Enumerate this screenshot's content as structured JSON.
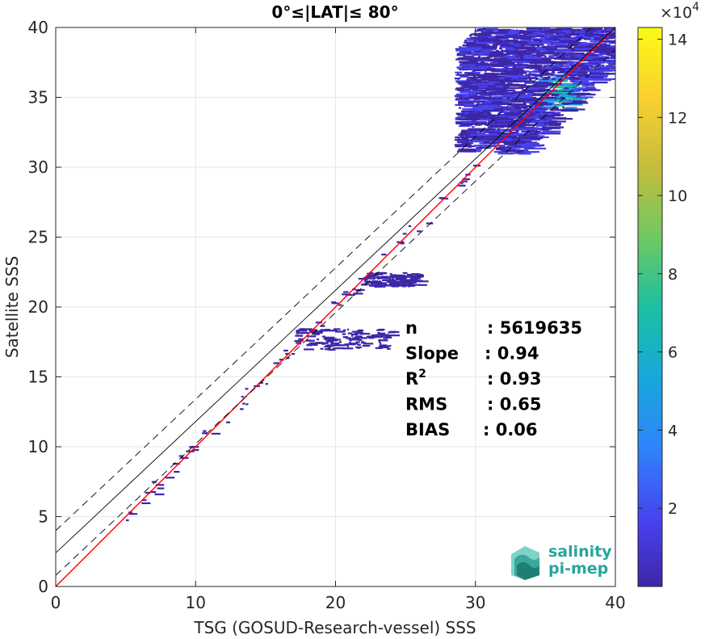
{
  "chart_data": {
    "type": "heatmap",
    "title": "0°≤|LAT|≤ 80°",
    "xlabel": "TSG (GOSUD-Research-vessel) SSS",
    "ylabel": "Satellite SSS",
    "xlim": [
      0,
      40
    ],
    "ylim": [
      0,
      40
    ],
    "xticks": [
      "0",
      "10",
      "20",
      "30",
      "40"
    ],
    "yticks": [
      "0",
      "5",
      "10",
      "15",
      "20",
      "25",
      "30",
      "35",
      "40"
    ],
    "grid": true,
    "lines": [
      {
        "name": "",
        "color": "#ff0000",
        "style": "solid",
        "x": [
          0,
          40
        ],
        "y": [
          0,
          40
        ]
      },
      {
        "name": "",
        "color": "#000000",
        "style": "solid",
        "x": [
          0,
          40
        ],
        "y": [
          2.4,
          40
        ]
      },
      {
        "name": "",
        "color": "#000000",
        "style": "dashed",
        "x": [
          0,
          40
        ],
        "y": [
          4.0,
          41.6
        ]
      },
      {
        "name": "",
        "color": "#000000",
        "style": "dashed",
        "x": [
          0,
          40
        ],
        "y": [
          0.8,
          38.4
        ]
      }
    ],
    "density_regions": [
      {
        "x": [
          28.5,
          40
        ],
        "y": [
          31,
          40
        ],
        "level": "high"
      },
      {
        "x": [
          17,
          24
        ],
        "y": [
          17,
          18.5
        ],
        "level": "low"
      },
      {
        "x": [
          22,
          26
        ],
        "y": [
          21.5,
          22.5
        ],
        "level": "low"
      }
    ],
    "colorbar": {
      "multiplier": "×10",
      "multiplier_exp": "4",
      "ticks": [
        "2",
        "4",
        "6",
        "8",
        "10",
        "12",
        "14"
      ],
      "range": [
        0,
        14.3
      ],
      "colors": [
        "#3e26a8",
        "#4743f0",
        "#2e85fb",
        "#17a9d8",
        "#1dbfa2",
        "#6cc964",
        "#c5bc3c",
        "#fbd12f",
        "#f9fb15"
      ]
    },
    "stats": [
      {
        "label": "n",
        "sep": ":",
        "value": "5619635"
      },
      {
        "label": "Slope",
        "sep": ":",
        "value": "0.94"
      },
      {
        "label": "R",
        "sup": "2",
        "sep": ":",
        "value": "0.93"
      },
      {
        "label": "RMS",
        "sep": ":",
        "value": "0.65"
      },
      {
        "label": "BIAS",
        "sep": ":",
        "value": "0.06"
      }
    ]
  },
  "logo": {
    "line1": "salinity",
    "line2": "pi-mep"
  }
}
